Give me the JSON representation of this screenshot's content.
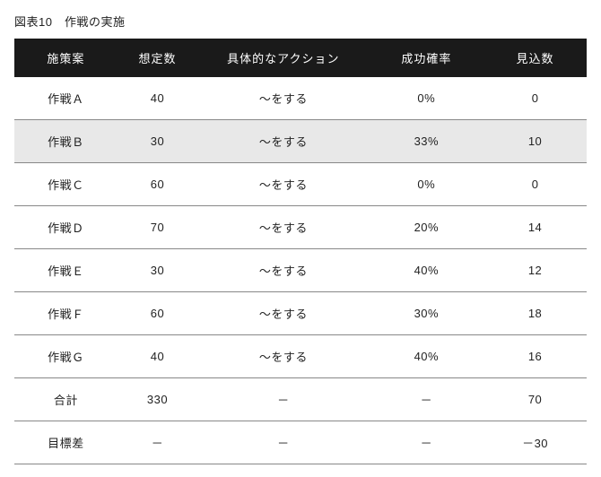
{
  "title": "図表10　作戦の実施",
  "table": {
    "columns": [
      "施策案",
      "想定数",
      "具体的なアクション",
      "成功確率",
      "見込数"
    ],
    "rows": [
      {
        "plan": "作戦Ａ",
        "est": "40",
        "action": "～をする",
        "prob": "0%",
        "exp": "0",
        "alt": false
      },
      {
        "plan": "作戦Ｂ",
        "est": "30",
        "action": "～をする",
        "prob": "33%",
        "exp": "10",
        "alt": true
      },
      {
        "plan": "作戦Ｃ",
        "est": "60",
        "action": "～をする",
        "prob": "0%",
        "exp": "0",
        "alt": false
      },
      {
        "plan": "作戦Ｄ",
        "est": "70",
        "action": "～をする",
        "prob": "20%",
        "exp": "14",
        "alt": false
      },
      {
        "plan": "作戦Ｅ",
        "est": "30",
        "action": "～をする",
        "prob": "40%",
        "exp": "12",
        "alt": false
      },
      {
        "plan": "作戦Ｆ",
        "est": "60",
        "action": "～をする",
        "prob": "30%",
        "exp": "18",
        "alt": false
      },
      {
        "plan": "作戦Ｇ",
        "est": "40",
        "action": "～をする",
        "prob": "40%",
        "exp": "16",
        "alt": false
      },
      {
        "plan": "合計",
        "est": "330",
        "action": "－",
        "prob": "－",
        "exp": "70",
        "alt": false
      },
      {
        "plan": "目標差",
        "est": "－",
        "action": "－",
        "prob": "－",
        "exp": "－30",
        "alt": false
      }
    ],
    "header_bg": "#1a1a1a",
    "header_color": "#ffffff",
    "row_alt_bg": "#e8e8e8",
    "border_color": "#888888",
    "font_size": 13
  }
}
